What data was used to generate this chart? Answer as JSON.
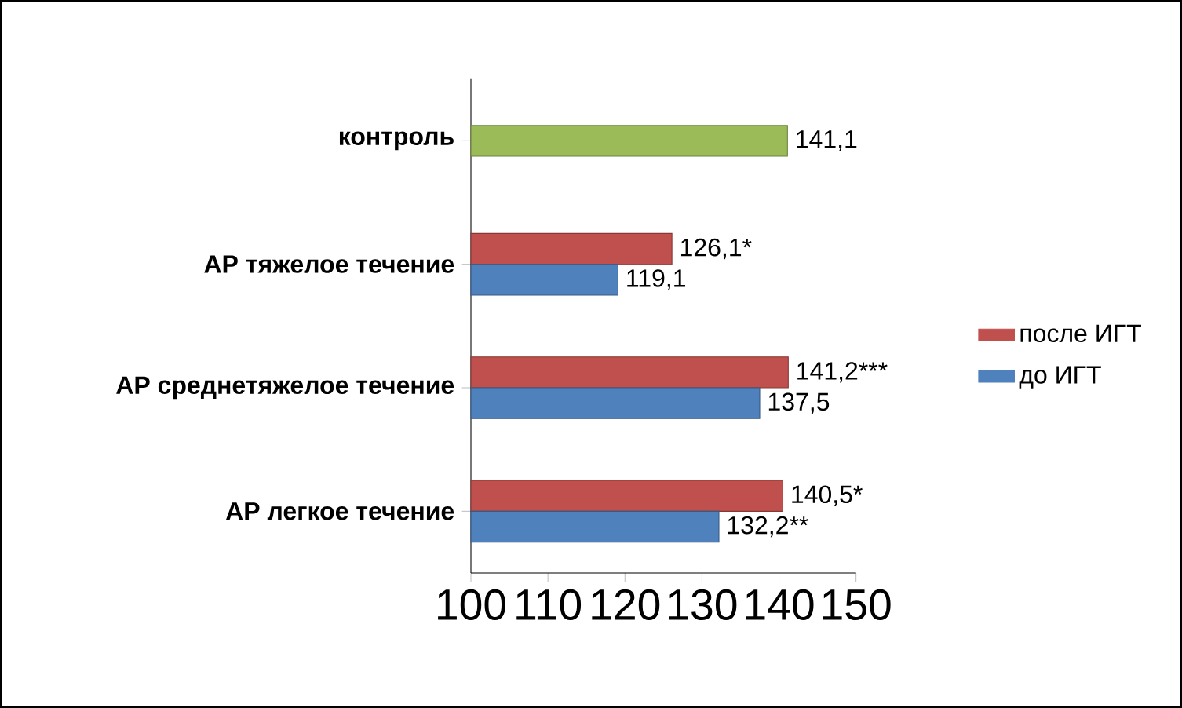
{
  "chart_data": {
    "type": "bar",
    "orientation": "horizontal",
    "categories": [
      "контроль",
      "АР тяжелое течение",
      "АР среднетяжелое течение",
      "АР легкое течение"
    ],
    "series": [
      {
        "name": "после ИГТ",
        "color": "#c0504d",
        "values": [
          null,
          126.1,
          141.2,
          140.5
        ],
        "value_labels": [
          null,
          "126,1*",
          "141,2***",
          "140,5*"
        ]
      },
      {
        "name": "до ИГТ",
        "color": "#4f81bd",
        "values": [
          null,
          119.1,
          137.5,
          132.2
        ],
        "value_labels": [
          null,
          "119,1",
          "137,5",
          "132,2**"
        ]
      },
      {
        "color": "#9bbb59",
        "values": [
          141.1,
          null,
          null,
          null
        ],
        "value_labels": [
          "141,1",
          null,
          null,
          null
        ]
      }
    ],
    "xlim": [
      100,
      150
    ],
    "xticks": [
      100,
      110,
      120,
      130,
      140,
      150
    ],
    "legend": "right"
  }
}
